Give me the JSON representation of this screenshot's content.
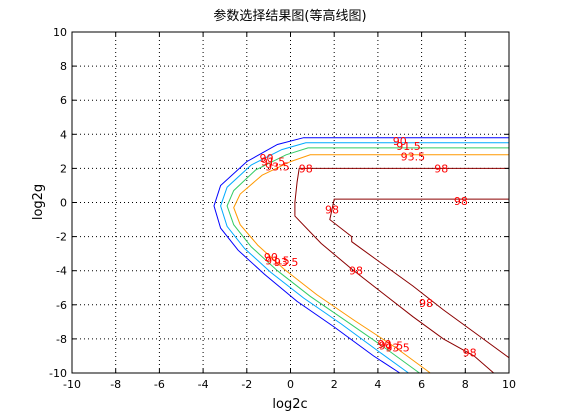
{
  "chart_data": {
    "type": "contour",
    "title": "参数选择结果图(等高线图)",
    "xlabel": "log2c",
    "ylabel": "log2g",
    "xlim": [
      -10,
      10
    ],
    "ylim": [
      -10,
      10
    ],
    "x_ticks": [
      "-10",
      "-8",
      "-6",
      "-4",
      "-2",
      "0",
      "2",
      "4",
      "6",
      "8",
      "10"
    ],
    "y_ticks": [
      "-10",
      "-8",
      "-6",
      "-4",
      "-2",
      "0",
      "2",
      "4",
      "6",
      "8",
      "10"
    ],
    "grid": true,
    "series": [
      {
        "level": "90",
        "color": "#0000ff",
        "points": [
          [
            10,
            3.8
          ],
          [
            0.6,
            3.8
          ],
          [
            -0.6,
            3.4
          ],
          [
            -2,
            2.4
          ],
          [
            -3.2,
            1
          ],
          [
            -3.5,
            -0.2
          ],
          [
            -3.2,
            -1.5
          ],
          [
            -2.4,
            -2.8
          ],
          [
            -1.2,
            -4.2
          ],
          [
            0.3,
            -5.8
          ],
          [
            2,
            -7.3
          ],
          [
            3.8,
            -9
          ],
          [
            5,
            -10
          ]
        ]
      },
      {
        "level": "91.5",
        "color": "#00aaff",
        "points": [
          [
            10,
            3.5
          ],
          [
            0.7,
            3.5
          ],
          [
            -0.4,
            3.1
          ],
          [
            -1.8,
            2.2
          ],
          [
            -2.9,
            0.9
          ],
          [
            -3.2,
            -0.2
          ],
          [
            -2.9,
            -1.4
          ],
          [
            -2.1,
            -2.7
          ],
          [
            -0.9,
            -4.1
          ],
          [
            0.6,
            -5.6
          ],
          [
            2.3,
            -7.1
          ],
          [
            4.1,
            -8.8
          ],
          [
            5.4,
            -10
          ]
        ]
      },
      {
        "level": "93",
        "color": "#33cc66",
        "points": [
          [
            10,
            3.2
          ],
          [
            0.8,
            3.2
          ],
          [
            -0.2,
            2.8
          ],
          [
            -1.6,
            1.9
          ],
          [
            -2.6,
            0.7
          ],
          [
            -2.9,
            -0.2
          ],
          [
            -2.6,
            -1.3
          ],
          [
            -1.8,
            -2.6
          ],
          [
            -0.6,
            -4
          ],
          [
            0.9,
            -5.5
          ],
          [
            2.6,
            -7
          ],
          [
            4.4,
            -8.6
          ],
          [
            5.9,
            -10
          ]
        ]
      },
      {
        "level": "93.5",
        "color": "#ff9900",
        "points": [
          [
            10,
            2.8
          ],
          [
            0.9,
            2.8
          ],
          [
            0,
            2.4
          ],
          [
            -1.3,
            1.6
          ],
          [
            -2.3,
            0.5
          ],
          [
            -2.6,
            -0.3
          ],
          [
            -2.3,
            -1.3
          ],
          [
            -1.5,
            -2.5
          ],
          [
            -0.3,
            -3.9
          ],
          [
            1.2,
            -5.4
          ],
          [
            2.9,
            -6.9
          ],
          [
            4.8,
            -8.5
          ],
          [
            6.4,
            -10
          ]
        ]
      },
      {
        "level": "98",
        "color": "#8b0000",
        "points": [
          [
            10,
            2
          ],
          [
            0.4,
            2
          ],
          [
            0.3,
            1.2
          ],
          [
            0.2,
            0
          ],
          [
            0.2,
            -0.8
          ],
          [
            1.4,
            -2.4
          ],
          [
            2.8,
            -3.9
          ],
          [
            4.2,
            -5.3
          ],
          [
            5.6,
            -6.7
          ],
          [
            7,
            -8
          ],
          [
            8.4,
            -9
          ],
          [
            9.3,
            -10
          ]
        ]
      },
      {
        "level": "98",
        "color": "#8b0000",
        "points": [
          [
            10,
            0.2
          ],
          [
            2,
            0.2
          ],
          [
            1.8,
            -1
          ],
          [
            2.8,
            -2
          ],
          [
            2.8,
            -2.3
          ],
          [
            4.2,
            -3.6
          ],
          [
            5.6,
            -4.9
          ],
          [
            7,
            -6.3
          ],
          [
            8.4,
            -7.6
          ],
          [
            10,
            -9.1
          ]
        ]
      }
    ],
    "labels": [
      {
        "text": "90",
        "x": 5,
        "y": 3.6
      },
      {
        "text": "91.5",
        "x": 5.4,
        "y": 3.3
      },
      {
        "text": "93.5",
        "x": 5.6,
        "y": 2.7
      },
      {
        "text": "98",
        "x": 0.7,
        "y": 2
      },
      {
        "text": "98",
        "x": 6.9,
        "y": 2
      },
      {
        "text": "98",
        "x": 7.8,
        "y": 0.1
      },
      {
        "text": "98",
        "x": 1.9,
        "y": -0.4
      },
      {
        "text": "98",
        "x": 3,
        "y": -4
      },
      {
        "text": "98",
        "x": 6.2,
        "y": -5.9
      },
      {
        "text": "98",
        "x": 8.2,
        "y": -8.8
      },
      {
        "text": "90",
        "x": -1.1,
        "y": 2.6
      },
      {
        "text": "91.5",
        "x": -0.8,
        "y": 2.4
      },
      {
        "text": "93.5",
        "x": -0.6,
        "y": 2.1
      },
      {
        "text": "90",
        "x": -0.9,
        "y": -3.2
      },
      {
        "text": "91.5",
        "x": -0.6,
        "y": -3.4
      },
      {
        "text": "93.5",
        "x": -0.2,
        "y": -3.5
      },
      {
        "text": "90",
        "x": 4.3,
        "y": -8.3
      },
      {
        "text": "91.5",
        "x": 4.6,
        "y": -8.4
      },
      {
        "text": "93.5",
        "x": 4.9,
        "y": -8.5
      }
    ]
  }
}
